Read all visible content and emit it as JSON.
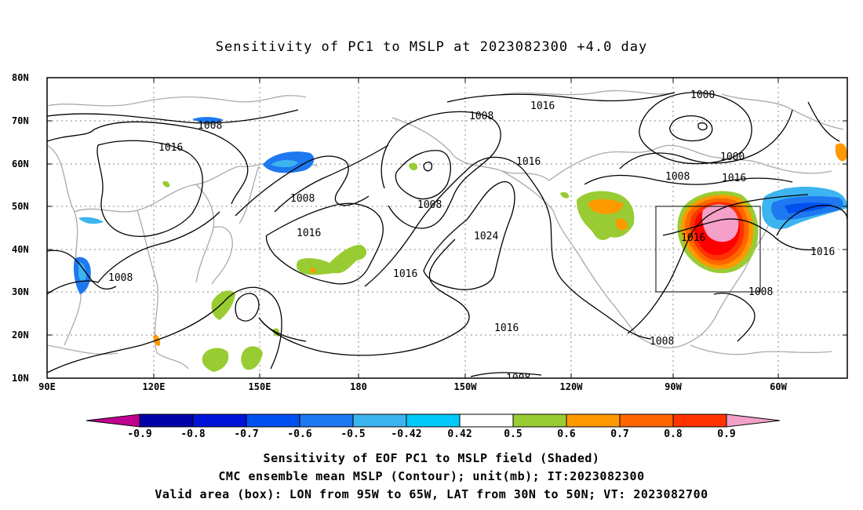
{
  "title": "Sensitivity of PC1 to MSLP at 2023082300 +4.0 day",
  "axes": {
    "lat_labels": [
      "80N",
      "70N",
      "60N",
      "50N",
      "40N",
      "30N",
      "20N",
      "10N"
    ],
    "lon_labels": [
      "90E",
      "120E",
      "150E",
      "180",
      "150W",
      "120W",
      "90W",
      "60W"
    ]
  },
  "contour_labels": [
    "1016",
    "1008",
    "1008",
    "1016",
    "1016",
    "1008",
    "1000",
    "1000",
    "1016",
    "1008",
    "1016",
    "1024",
    "1016",
    "1016",
    "1016",
    "1008",
    "1008",
    "1016",
    "1008",
    "1008",
    "1008"
  ],
  "colorbar": {
    "labels": [
      "-0.9",
      "-0.8",
      "-0.7",
      "-0.6",
      "-0.5",
      "-0.42",
      "0.42",
      "0.5",
      "0.6",
      "0.7",
      "0.8",
      "0.9"
    ],
    "colors": [
      "#c0008f",
      "#0000a8",
      "#0014d8",
      "#0050f0",
      "#1e78f0",
      "#3cb4f0",
      "#00c8f8",
      "#ffffff",
      "#99cc33",
      "#ff9900",
      "#ff6600",
      "#ff3300",
      "#ff0000",
      "#f4a0c8"
    ]
  },
  "valid_box": {
    "lon_from": "95W",
    "lon_to": "65W",
    "lat_from": "30N",
    "lat_to": "50N"
  },
  "captions": {
    "line1": "Sensitivity of EOF PC1 to MSLP field (Shaded)",
    "line2": "CMC ensemble mean MSLP (Contour); unit(mb); IT:2023082300",
    "line3": "Valid area (box): LON from 95W to 65W, LAT from 30N to 50N; VT: 2023082700"
  }
}
